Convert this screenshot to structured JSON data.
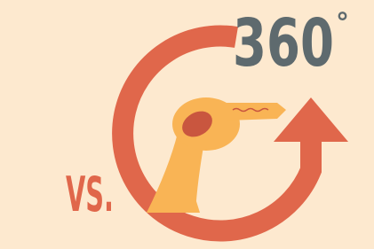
{
  "title": "360",
  "degree": "°",
  "label": "VS."
}
